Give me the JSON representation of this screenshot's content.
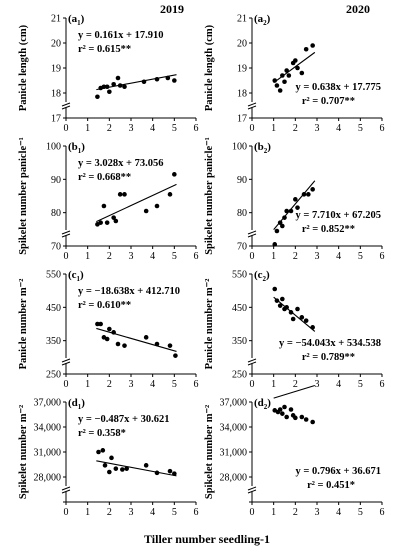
{
  "years": [
    "2019",
    "2020"
  ],
  "x_axis_title": "Tiller number seedling-1",
  "chart_data": [
    {
      "type": "scatter",
      "panel": "a",
      "year": "2019",
      "label_letter": "a",
      "label_sub": "1",
      "ylabel": "Panicle length (cm)",
      "ylim": [
        17,
        21
      ],
      "yticks": [
        17,
        18,
        19,
        20,
        21
      ],
      "xlim": [
        0,
        6
      ],
      "xticks": [
        0,
        1,
        2,
        3,
        4,
        5,
        6
      ],
      "equation": "y = 0.161x + 17.910",
      "r2": "r² = 0.615**",
      "eq_loc": "upper-left",
      "slope": 0.161,
      "intercept": 17.91,
      "fit_x": [
        1.4,
        5.1
      ],
      "points": [
        [
          1.45,
          17.85
        ],
        [
          1.6,
          18.2
        ],
        [
          1.75,
          18.25
        ],
        [
          1.9,
          18.25
        ],
        [
          2.0,
          18.05
        ],
        [
          2.2,
          18.35
        ],
        [
          2.4,
          18.6
        ],
        [
          2.5,
          18.3
        ],
        [
          2.7,
          18.25
        ],
        [
          3.6,
          18.45
        ],
        [
          4.2,
          18.55
        ],
        [
          4.7,
          18.6
        ],
        [
          5.0,
          18.5
        ]
      ]
    },
    {
      "type": "scatter",
      "panel": "a",
      "year": "2020",
      "label_letter": "a",
      "label_sub": "2",
      "ylabel": "Panicle length (cm)",
      "ylim": [
        17,
        21
      ],
      "yticks": [
        17,
        18,
        19,
        20,
        21
      ],
      "xlim": [
        0,
        6
      ],
      "xticks": [
        0,
        1,
        2,
        3,
        4,
        5,
        6
      ],
      "equation": "y = 0.638x + 17.775",
      "r2": "r² = 0.707**",
      "eq_loc": "lower-right",
      "slope": 0.638,
      "intercept": 17.775,
      "fit_x": [
        1.0,
        2.9
      ],
      "points": [
        [
          1.05,
          18.5
        ],
        [
          1.15,
          18.3
        ],
        [
          1.3,
          18.1
        ],
        [
          1.4,
          18.7
        ],
        [
          1.5,
          18.45
        ],
        [
          1.6,
          18.9
        ],
        [
          1.7,
          18.7
        ],
        [
          1.9,
          19.2
        ],
        [
          2.0,
          19.3
        ],
        [
          2.1,
          19.0
        ],
        [
          2.3,
          18.8
        ],
        [
          2.5,
          19.75
        ],
        [
          2.8,
          19.9
        ]
      ]
    },
    {
      "type": "scatter",
      "panel": "b",
      "year": "2019",
      "label_letter": "b",
      "label_sub": "1",
      "ylabel": "Spikelet number panicle⁻¹",
      "ylim": [
        70,
        100
      ],
      "yticks": [
        70,
        80,
        90,
        100
      ],
      "xlim": [
        0,
        6
      ],
      "xticks": [
        0,
        1,
        2,
        3,
        4,
        5,
        6
      ],
      "equation": "y = 3.028x + 73.056",
      "r2": "r² = 0.668**",
      "eq_loc": "upper-left",
      "slope": 3.028,
      "intercept": 73.056,
      "fit_x": [
        1.4,
        5.1
      ],
      "points": [
        [
          1.45,
          76.5
        ],
        [
          1.6,
          77.0
        ],
        [
          1.75,
          82.0
        ],
        [
          1.9,
          77.0
        ],
        [
          2.2,
          78.5
        ],
        [
          2.3,
          77.5
        ],
        [
          2.5,
          85.5
        ],
        [
          2.7,
          85.5
        ],
        [
          3.7,
          80.5
        ],
        [
          4.2,
          82.0
        ],
        [
          4.8,
          85.5
        ],
        [
          5.0,
          91.5
        ]
      ]
    },
    {
      "type": "scatter",
      "panel": "b",
      "year": "2020",
      "label_letter": "b",
      "label_sub": "2",
      "ylabel": "Spikelet number panicle⁻¹",
      "ylim": [
        70,
        100
      ],
      "yticks": [
        70,
        80,
        90,
        100
      ],
      "xlim": [
        0,
        6
      ],
      "xticks": [
        0,
        1,
        2,
        3,
        4,
        5,
        6
      ],
      "equation": "y = 7.710x + 67.205",
      "r2": "r² = 0.852**",
      "eq_loc": "lower-right",
      "slope": 7.71,
      "intercept": 67.205,
      "fit_x": [
        1.0,
        2.9
      ],
      "points": [
        [
          1.05,
          70.5
        ],
        [
          1.15,
          74.5
        ],
        [
          1.3,
          77.0
        ],
        [
          1.4,
          76.0
        ],
        [
          1.5,
          78.5
        ],
        [
          1.6,
          80.5
        ],
        [
          1.8,
          80.5
        ],
        [
          2.0,
          84.0
        ],
        [
          2.1,
          81.5
        ],
        [
          2.4,
          85.5
        ],
        [
          2.6,
          85.5
        ],
        [
          2.8,
          87.0
        ]
      ]
    },
    {
      "type": "scatter",
      "panel": "c",
      "year": "2019",
      "label_letter": "c",
      "label_sub": "1",
      "ylabel": "Panicle number m⁻²",
      "ylim": [
        250,
        550
      ],
      "yticks": [
        250,
        350,
        450,
        550
      ],
      "xlim": [
        0,
        6
      ],
      "xticks": [
        0,
        1,
        2,
        3,
        4,
        5,
        6
      ],
      "equation": "y = −18.638x + 412.710",
      "r2": "r² = 0.610**",
      "eq_loc": "upper-left",
      "slope": -18.638,
      "intercept": 412.71,
      "fit_x": [
        1.4,
        5.1
      ],
      "points": [
        [
          1.45,
          400
        ],
        [
          1.6,
          400
        ],
        [
          1.75,
          360
        ],
        [
          1.9,
          355
        ],
        [
          2.0,
          385
        ],
        [
          2.2,
          375
        ],
        [
          2.4,
          340
        ],
        [
          2.7,
          335
        ],
        [
          3.7,
          360
        ],
        [
          4.2,
          340
        ],
        [
          4.8,
          335
        ],
        [
          5.05,
          305
        ]
      ]
    },
    {
      "type": "scatter",
      "panel": "c",
      "year": "2020",
      "label_letter": "c",
      "label_sub": "2",
      "ylabel": "Panicle number m⁻²",
      "ylim": [
        250,
        550
      ],
      "yticks": [
        250,
        350,
        450,
        550
      ],
      "xlim": [
        0,
        6
      ],
      "xticks": [
        0,
        1,
        2,
        3,
        4,
        5,
        6
      ],
      "equation": "y = −54.043x + 534.538",
      "r2": "r² = 0.789**",
      "eq_loc": "lower-right",
      "slope": -54.043,
      "intercept": 534.538,
      "fit_x": [
        1.0,
        2.9
      ],
      "points": [
        [
          1.05,
          505
        ],
        [
          1.15,
          470
        ],
        [
          1.3,
          455
        ],
        [
          1.4,
          475
        ],
        [
          1.5,
          445
        ],
        [
          1.6,
          450
        ],
        [
          1.8,
          435
        ],
        [
          1.9,
          415
        ],
        [
          2.1,
          445
        ],
        [
          2.3,
          420
        ],
        [
          2.5,
          410
        ],
        [
          2.8,
          390
        ]
      ]
    },
    {
      "type": "scatter",
      "panel": "d",
      "year": "2019",
      "label_letter": "d",
      "label_sub": "1",
      "ylabel": "Spikelet number m⁻²",
      "ylim": [
        25000,
        37000
      ],
      "yticks": [
        25000,
        28000,
        31000,
        34000,
        37000
      ],
      "ytick_labels": [
        "",
        "28,000",
        "31,000",
        "34,000",
        "37,000"
      ],
      "xlim": [
        0,
        6
      ],
      "xticks": [
        0,
        1,
        2,
        3,
        4,
        5,
        6
      ],
      "equation": "y = −0.487x + 30.621",
      "r2": "r² = 0.358*",
      "eq_loc": "upper-left",
      "slope": -487,
      "intercept": 30621,
      "fit_x": [
        1.4,
        5.1
      ],
      "points": [
        [
          1.5,
          31000
        ],
        [
          1.7,
          31200
        ],
        [
          1.8,
          29400
        ],
        [
          2.0,
          28600
        ],
        [
          2.1,
          30300
        ],
        [
          2.3,
          29000
        ],
        [
          2.6,
          28900
        ],
        [
          2.8,
          29000
        ],
        [
          3.7,
          29400
        ],
        [
          4.2,
          28500
        ],
        [
          4.8,
          28700
        ],
        [
          5.0,
          28400
        ]
      ]
    },
    {
      "type": "scatter",
      "panel": "d",
      "year": "2020",
      "label_letter": "d",
      "label_sub": "2",
      "ylabel": "Spikelet number m⁻²",
      "ylim": [
        25000,
        37000
      ],
      "yticks": [
        25000,
        28000,
        31000,
        34000,
        37000
      ],
      "ytick_labels": [
        "",
        "28,000",
        "31,000",
        "34,000",
        "37,000"
      ],
      "xlim": [
        0,
        6
      ],
      "xticks": [
        0,
        1,
        2,
        3,
        4,
        5,
        6
      ],
      "equation": "y = 0.796x + 36.671",
      "r2": "r² = 0.451*",
      "eq_loc": "lower-right",
      "slope": 796,
      "intercept": 36671,
      "fit_x": [
        1.0,
        2.9
      ],
      "points": [
        [
          1.05,
          36000
        ],
        [
          1.2,
          35800
        ],
        [
          1.3,
          36100
        ],
        [
          1.4,
          35600
        ],
        [
          1.5,
          36400
        ],
        [
          1.6,
          35200
        ],
        [
          1.8,
          36100
        ],
        [
          1.9,
          35400
        ],
        [
          2.0,
          35100
        ],
        [
          2.3,
          35200
        ],
        [
          2.5,
          34900
        ],
        [
          2.8,
          34600
        ]
      ]
    }
  ]
}
